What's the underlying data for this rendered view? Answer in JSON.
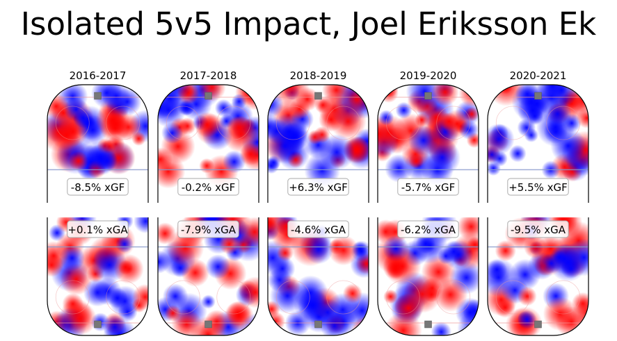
{
  "title": "Isolated 5v5 Impact, Joel Eriksson Ek",
  "chart_data": {
    "type": "heatmap",
    "title": "Isolated 5v5 Impact, Joel Eriksson Ek",
    "seasons": [
      "2016-2017",
      "2017-2018",
      "2018-2019",
      "2019-2020",
      "2020-2021"
    ],
    "offense": {
      "metric": "xGF",
      "values": [
        "-8.5% xGF",
        "-0.2% xGF",
        "+6.3% xGF",
        "-5.7% xGF",
        "+5.5% xGF"
      ]
    },
    "defense": {
      "metric": "xGA",
      "values": [
        "+0.1% xGA",
        "-7.9% xGA",
        "-4.6% xGA",
        "-6.2% xGA",
        "-9.5% xGA"
      ]
    },
    "colormap": {
      "positive": "#ff0000",
      "negative": "#0000ff",
      "neutral": "#ffffff"
    },
    "grid": false,
    "legend": "none"
  }
}
